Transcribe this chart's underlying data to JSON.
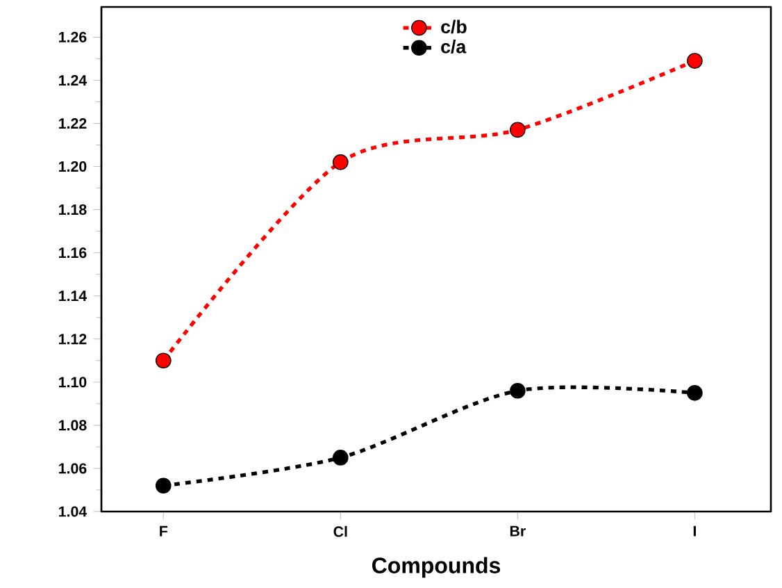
{
  "chart_data": {
    "type": "line",
    "xlabel": "Compounds",
    "categories": [
      "F",
      "Cl",
      "Br",
      "I"
    ],
    "series": [
      {
        "name": "c/b",
        "color": "#ff0000",
        "values": [
          1.11,
          1.202,
          1.217,
          1.249
        ]
      },
      {
        "name": "c/a",
        "color": "#000000",
        "values": [
          1.052,
          1.065,
          1.096,
          1.095
        ]
      }
    ],
    "ylim": [
      1.04,
      1.274
    ],
    "yticks": [
      1.04,
      1.06,
      1.08,
      {
        "value": 1.1,
        "label": "1.10"
      },
      1.12,
      1.14,
      1.16,
      1.18,
      {
        "value": 1.2,
        "label": "1.20"
      },
      1.22,
      1.24,
      1.26
    ],
    "legend": "top",
    "marker": "circle",
    "line_style": "dashed",
    "grid": false
  }
}
